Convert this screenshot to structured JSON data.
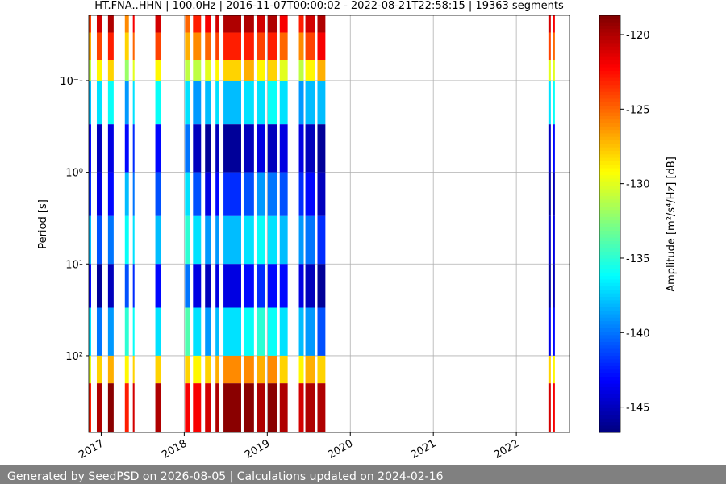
{
  "chart_data": {
    "type": "spectrogram",
    "title": "HT.FNA..HHN | 100.0Hz | 2016-11-07T00:00:02 - 2022-08-21T22:58:15 | 19363 segments",
    "ylabel": "Period [s]",
    "colorbar_label": "Amplitude [m²/s⁴/Hz] [dB]",
    "xlim": [
      2016.85,
      2022.64
    ],
    "xticks": [
      2017,
      2018,
      2019,
      2020,
      2021,
      2022
    ],
    "ylim": [
      0.0194,
      686
    ],
    "ylog": true,
    "yinvert": true,
    "yticks": [
      {
        "value": 0.1,
        "label": "10⁻¹"
      },
      {
        "value": 1,
        "label": "10⁰"
      },
      {
        "value": 10,
        "label": "10¹"
      },
      {
        "value": 100,
        "label": "10²"
      }
    ],
    "grid": true,
    "colormap": "jet",
    "clim": [
      -146.7,
      -118.7
    ],
    "cticks": [
      -120,
      -125,
      -130,
      -135,
      -140,
      -145
    ],
    "period_edges": [
      0.0194,
      0.03,
      0.06,
      0.1,
      0.3,
      1,
      3,
      10,
      30,
      100,
      200,
      686
    ],
    "segments": [
      {
        "start": 2016.85,
        "end": 2016.879,
        "values": [
          -124,
          -127,
          -131,
          -138,
          -143,
          -142,
          -138,
          -143,
          -137,
          -130,
          -123
        ]
      },
      {
        "start": 2016.947,
        "end": 2017.014,
        "values": [
          -121,
          -124,
          -129,
          -137,
          -145,
          -144,
          -141,
          -146,
          -140,
          -128,
          -120
        ]
      },
      {
        "start": 2017.082,
        "end": 2017.15,
        "values": [
          -120,
          -123,
          -128,
          -136,
          -144,
          -143,
          -140,
          -145,
          -139,
          -127,
          -119
        ]
      },
      {
        "start": 2017.285,
        "end": 2017.333,
        "values": [
          -126,
          -128,
          -132,
          -139,
          -143,
          -138,
          -136,
          -141,
          -135,
          -129,
          -123
        ]
      },
      {
        "start": 2017.381,
        "end": 2017.401,
        "values": [
          -122,
          -125,
          -130,
          -137,
          -142,
          -140,
          -137,
          -142,
          -136,
          -128,
          -121
        ]
      },
      {
        "start": 2017.652,
        "end": 2017.72,
        "values": [
          -121,
          -124,
          -129,
          -136,
          -143,
          -141,
          -138,
          -143,
          -137,
          -128,
          -120
        ]
      },
      {
        "start": 2018.009,
        "end": 2018.067,
        "values": [
          -125,
          -127,
          -131,
          -137,
          -140,
          -137,
          -135,
          -140,
          -134,
          -128,
          -122
        ]
      },
      {
        "start": 2018.106,
        "end": 2018.203,
        "values": [
          -123,
          -126,
          -131,
          -139,
          -145,
          -141,
          -137,
          -144,
          -137,
          -129,
          -122
        ]
      },
      {
        "start": 2018.251,
        "end": 2018.319,
        "values": [
          -122,
          -125,
          -130,
          -138,
          -146,
          -144,
          -139,
          -145,
          -139,
          -128,
          -121
        ]
      },
      {
        "start": 2018.377,
        "end": 2018.415,
        "values": [
          -121,
          -124,
          -129,
          -137,
          -145,
          -143,
          -139,
          -144,
          -138,
          -127,
          -120
        ]
      },
      {
        "start": 2018.473,
        "end": 2018.686,
        "values": [
          -120,
          -123,
          -128,
          -138,
          -146,
          -142,
          -138,
          -144,
          -137,
          -126,
          -119
        ]
      },
      {
        "start": 2018.715,
        "end": 2018.84,
        "values": [
          -120,
          -123,
          -127,
          -137,
          -145,
          -141,
          -137,
          -143,
          -136,
          -126,
          -119
        ]
      },
      {
        "start": 2018.879,
        "end": 2018.976,
        "values": [
          -121,
          -124,
          -129,
          -137,
          -144,
          -139,
          -136,
          -142,
          -135,
          -127,
          -120
        ]
      },
      {
        "start": 2019.005,
        "end": 2019.121,
        "values": [
          -120,
          -123,
          -128,
          -136,
          -145,
          -140,
          -137,
          -143,
          -136,
          -126,
          -119
        ]
      },
      {
        "start": 2019.15,
        "end": 2019.246,
        "values": [
          -122,
          -125,
          -130,
          -137,
          -144,
          -141,
          -138,
          -143,
          -137,
          -128,
          -120
        ]
      },
      {
        "start": 2019.381,
        "end": 2019.439,
        "values": [
          -123,
          -126,
          -131,
          -139,
          -144,
          -142,
          -139,
          -144,
          -138,
          -129,
          -121
        ]
      },
      {
        "start": 2019.459,
        "end": 2019.575,
        "values": [
          -121,
          -124,
          -129,
          -138,
          -145,
          -143,
          -140,
          -145,
          -139,
          -127,
          -120
        ]
      },
      {
        "start": 2019.604,
        "end": 2019.7,
        "values": [
          -120,
          -122,
          -127,
          -138,
          -146,
          -145,
          -142,
          -146,
          -141,
          -128,
          -120
        ]
      },
      {
        "start": 2022.386,
        "end": 2022.415,
        "values": [
          -121,
          -124,
          -130,
          -137,
          -145,
          -146,
          -145,
          -146,
          -144,
          -128,
          -121
        ]
      },
      {
        "start": 2022.444,
        "end": 2022.464,
        "values": [
          -122,
          -125,
          -130,
          -136,
          -143,
          -145,
          -144,
          -145,
          -143,
          -129,
          -122
        ]
      }
    ]
  },
  "footer": "Generated by SeedPSD on 2026-08-05 | Calculations updated on 2024-02-16"
}
